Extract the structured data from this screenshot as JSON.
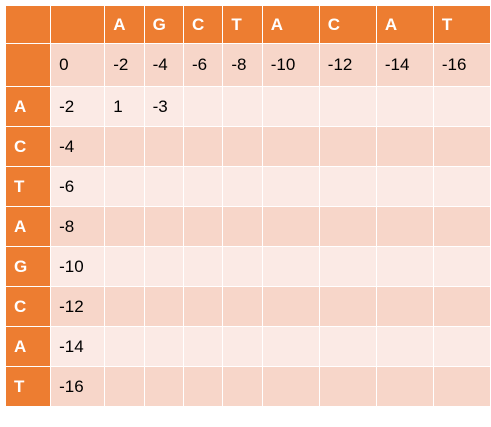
{
  "top_sequence": [
    "A",
    "G",
    "C",
    "T",
    "A",
    "C",
    "A",
    "T"
  ],
  "left_sequence": [
    "A",
    "C",
    "T",
    "A",
    "G",
    "C",
    "A",
    "T"
  ],
  "first_row": [
    "0",
    "-2",
    "-4",
    "-6",
    "-8",
    "-10",
    "-12",
    "-14",
    "-16"
  ],
  "rows": [
    {
      "letter": "A",
      "values": [
        "-2",
        "1",
        "-3",
        "",
        "",
        "",
        "",
        "",
        ""
      ]
    },
    {
      "letter": "C",
      "values": [
        "-4",
        "",
        "",
        "",
        "",
        "",
        "",
        "",
        ""
      ]
    },
    {
      "letter": "T",
      "values": [
        "-6",
        "",
        "",
        "",
        "",
        "",
        "",
        "",
        ""
      ]
    },
    {
      "letter": "A",
      "values": [
        "-8",
        "",
        "",
        "",
        "",
        "",
        "",
        "",
        ""
      ]
    },
    {
      "letter": "G",
      "values": [
        "-10",
        "",
        "",
        "",
        "",
        "",
        "",
        "",
        ""
      ]
    },
    {
      "letter": "C",
      "values": [
        "-12",
        "",
        "",
        "",
        "",
        "",
        "",
        "",
        ""
      ]
    },
    {
      "letter": "A",
      "values": [
        "-14",
        "",
        "",
        "",
        "",
        "",
        "",
        "",
        ""
      ]
    },
    {
      "letter": "T",
      "values": [
        "-16",
        "",
        "",
        "",
        "",
        "",
        "",
        "",
        ""
      ]
    }
  ],
  "colors": {
    "header": "#ed7d31",
    "header_text": "#ffffff",
    "cell_light": "#fbeae5",
    "cell_dark": "#f7d6c9"
  }
}
